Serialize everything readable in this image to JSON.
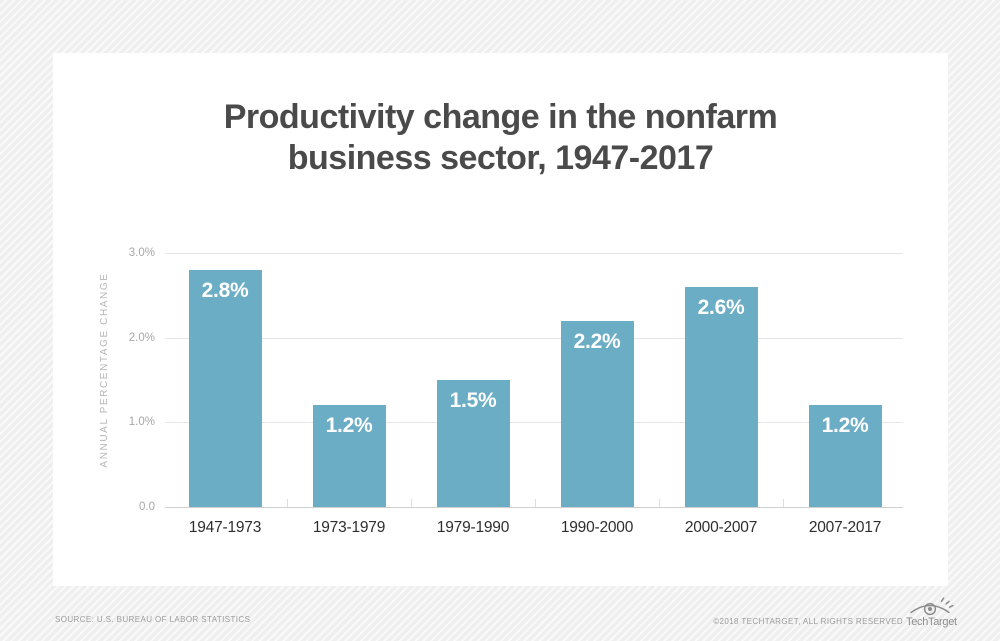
{
  "header": {
    "title": "Productivity change in the nonfarm\nbusiness sector, 1947-2017"
  },
  "chart_data": {
    "type": "bar",
    "title": "Productivity change in the nonfarm business sector, 1947-2017",
    "categories": [
      "1947-1973",
      "1973-1979",
      "1979-1990",
      "1990-2000",
      "2000-2007",
      "2007-2017"
    ],
    "values": [
      2.8,
      1.2,
      1.5,
      2.2,
      2.6,
      1.2
    ],
    "value_labels": [
      "2.8%",
      "1.2%",
      "1.5%",
      "2.2%",
      "2.6%",
      "1.2%"
    ],
    "xlabel": "",
    "ylabel": "ANNUAL PERCENTAGE CHANGE",
    "yticks": [
      {
        "label": "3.0%",
        "value": 3.0
      },
      {
        "label": "2.0%",
        "value": 2.0
      },
      {
        "label": "1.0%",
        "value": 1.0
      },
      {
        "label": "0.0",
        "value": 0.0
      }
    ],
    "ylim": [
      0,
      3.0
    ],
    "grid": true,
    "legend_position": "none",
    "bar_color": "#6badc5",
    "bar_label_color": "#ffffff"
  },
  "footer": {
    "source": "SOURCE: U.S. BUREAU OF LABOR STATISTICS",
    "copyright": "©2018 TECHTARGET, ALL RIGHTS RESERVED",
    "brand": "TechTarget"
  },
  "colors": {
    "title_text": "#4a4a4a",
    "card_background": "#ffffff",
    "page_background": "#f0f0f0",
    "gridline": "#e5e5e5",
    "logo_gray": "#8d8d8d"
  }
}
